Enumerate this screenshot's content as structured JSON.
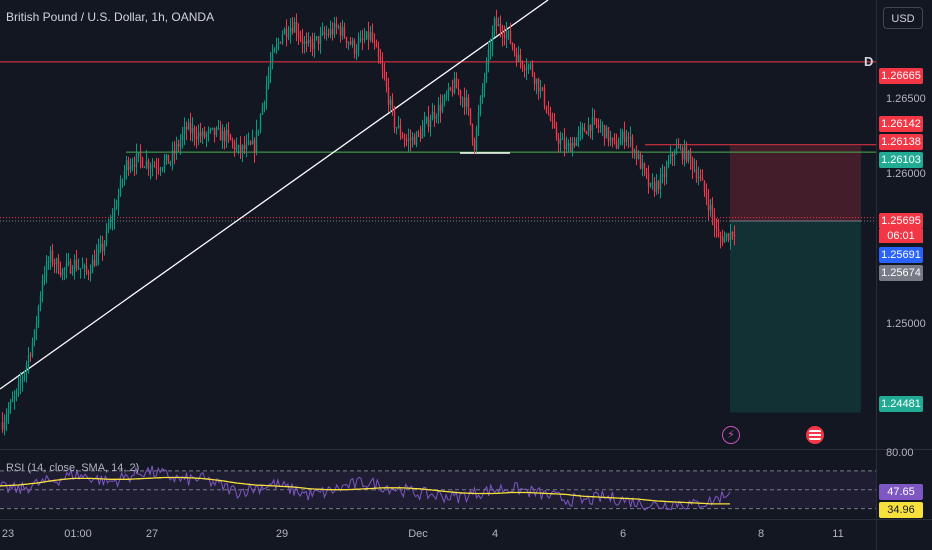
{
  "header": {
    "title": "British Pound / U.S. Dollar, 1h, OANDA",
    "currency": "USD",
    "interval_marker": "D"
  },
  "price_axis": {
    "ticks": [
      "1.26500",
      "1.26000",
      "1.25000"
    ],
    "tags": {
      "resistance": "1.26665",
      "stop_loss_a": "1.26142",
      "stop_loss_b": "1.26138",
      "support": "1.26103",
      "last_price": "1.25695",
      "countdown": "06:01",
      "bid": "1.25691",
      "entry": "1.25674",
      "take_profit": "1.24481"
    }
  },
  "time_axis": {
    "labels": [
      "23",
      "01:00",
      "27",
      "29",
      "Dec",
      "4",
      "6",
      "8",
      "11"
    ]
  },
  "rsi": {
    "title": "RSI (14, close, SMA, 14, 2)",
    "levels": [
      "80.00"
    ],
    "rsi_value": "47.65",
    "sma_value": "34.96"
  },
  "colors": {
    "background": "#131722",
    "bull": "#089981",
    "bear": "#f23645",
    "rsi_line": "#7e57c2",
    "rsi_sma": "#f7e03b",
    "trendline": "#ffffff"
  },
  "icons": [
    "lightning-event-icon",
    "us-flag-event-icon"
  ],
  "chart_data": {
    "type": "candlestick",
    "symbol": "GBPUSD",
    "timeframe": "1h",
    "ylim": [
      1.2426,
      1.2705
    ],
    "approx_price_path": [
      [
        0,
        1.2442
      ],
      [
        8,
        1.2462
      ],
      [
        16,
        1.2496
      ],
      [
        20,
        1.2532
      ],
      [
        24,
        1.2545
      ],
      [
        30,
        1.2536
      ],
      [
        36,
        1.2541
      ],
      [
        42,
        1.2535
      ],
      [
        50,
        1.2551
      ],
      [
        56,
        1.2574
      ],
      [
        62,
        1.2603
      ],
      [
        68,
        1.2606
      ],
      [
        76,
        1.2602
      ],
      [
        84,
        1.2605
      ],
      [
        92,
        1.2625
      ],
      [
        100,
        1.262
      ],
      [
        106,
        1.2622
      ],
      [
        112,
        1.262
      ],
      [
        118,
        1.2611
      ],
      [
        126,
        1.2614
      ],
      [
        134,
        1.2665
      ],
      [
        140,
        1.2685
      ],
      [
        146,
        1.269
      ],
      [
        152,
        1.2675
      ],
      [
        160,
        1.2682
      ],
      [
        168,
        1.2688
      ],
      [
        176,
        1.2675
      ],
      [
        184,
        1.2683
      ],
      [
        190,
        1.266
      ],
      [
        196,
        1.2628
      ],
      [
        202,
        1.2617
      ],
      [
        208,
        1.262
      ],
      [
        214,
        1.2632
      ],
      [
        220,
        1.264
      ],
      [
        226,
        1.2652
      ],
      [
        232,
        1.2641
      ],
      [
        236,
        1.2615
      ],
      [
        240,
        1.265
      ],
      [
        246,
        1.269
      ],
      [
        252,
        1.2685
      ],
      [
        258,
        1.2668
      ],
      [
        264,
        1.2663
      ],
      [
        270,
        1.2646
      ],
      [
        276,
        1.2622
      ],
      [
        282,
        1.2612
      ],
      [
        288,
        1.262
      ],
      [
        294,
        1.2628
      ],
      [
        300,
        1.2625
      ],
      [
        306,
        1.2614
      ],
      [
        312,
        1.2622
      ],
      [
        318,
        1.2606
      ],
      [
        324,
        1.2587
      ],
      [
        330,
        1.2593
      ],
      [
        336,
        1.2612
      ],
      [
        342,
        1.2609
      ],
      [
        348,
        1.2596
      ],
      [
        354,
        1.2575
      ],
      [
        358,
        1.2556
      ],
      [
        362,
        1.2558
      ],
      [
        366,
        1.2562
      ]
    ],
    "horizontal_levels": [
      1.26665,
      1.26103
    ],
    "position": {
      "side": "short",
      "entry": 1.25674,
      "stop": 1.26142,
      "target": 1.24481
    },
    "rsi": {
      "ylim": [
        20,
        90
      ],
      "levels": [
        70,
        50,
        30
      ],
      "approx_values": [
        52,
        50,
        56,
        60,
        66,
        63,
        58,
        64,
        70,
        66,
        60,
        62,
        55,
        48,
        52,
        56,
        50,
        44,
        48,
        54,
        58,
        54,
        50,
        46,
        44,
        42,
        46,
        50,
        52,
        48,
        44,
        40,
        38,
        42,
        40,
        36,
        33,
        36,
        34,
        38,
        47.65
      ],
      "approx_sma": [
        54,
        55,
        57,
        60,
        62,
        62,
        61,
        61,
        62,
        63,
        63,
        62,
        60,
        57,
        55,
        54,
        53,
        51,
        50,
        50,
        51,
        52,
        52,
        51,
        49,
        47,
        46,
        46,
        47,
        47,
        46,
        45,
        43,
        42,
        41,
        40,
        38,
        37,
        36,
        35,
        34.96
      ]
    }
  }
}
